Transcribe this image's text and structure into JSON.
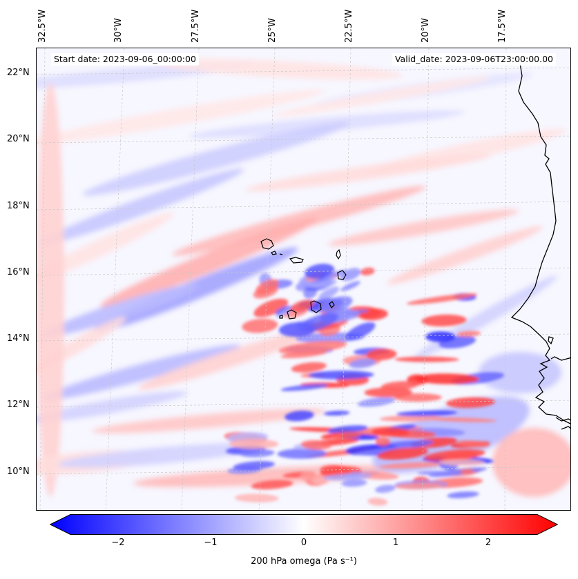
{
  "header": {
    "start_date": "Start date: 2023-09-06_00:00:00",
    "valid_date": "Valid_date: 2023-09-06T23:00:00.00"
  },
  "axes": {
    "lon_labels": [
      "32.5°W",
      "30°W",
      "27.5°W",
      "25°W",
      "22.5°W",
      "20°W",
      "17.5°W"
    ],
    "lat_labels": [
      "22°N",
      "20°N",
      "18°N",
      "16°N",
      "14°N",
      "12°N",
      "10°N"
    ]
  },
  "colorbar": {
    "ticks": [
      "−2",
      "−1",
      "0",
      "1",
      "2"
    ],
    "label": "200 hPa omega (Pa s⁻¹)",
    "range": [
      -2.6,
      2.6
    ],
    "min_color": "#0000ff",
    "mid_color": "#ffffff",
    "max_color": "#ff0000"
  },
  "map": {
    "field": "200 hPa omega",
    "colormap": "bwr",
    "coastline_color": "#000000",
    "gridline_color": "#bbbbbb"
  }
}
